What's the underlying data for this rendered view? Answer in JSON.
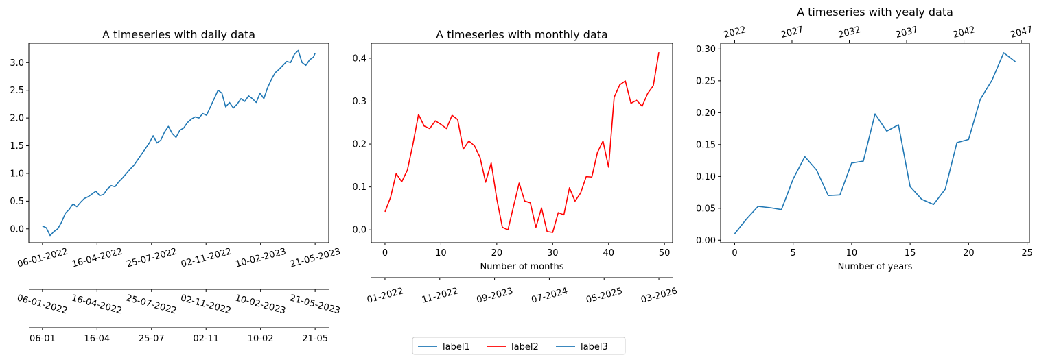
{
  "colors": {
    "blue": "#1f77b4",
    "red": "#ff0000"
  },
  "legend": {
    "placement": "bottom-center",
    "entries": [
      {
        "label": "label1",
        "color": "#1f77b4"
      },
      {
        "label": "label2",
        "color": "#ff0000"
      },
      {
        "label": "label3",
        "color": "#1f77b4"
      }
    ]
  },
  "chart_data": [
    {
      "type": "line",
      "title": "A timeseries with daily data",
      "xlabel": "",
      "ylabel": "",
      "x_range": [
        "2022-01-06",
        "2023-05-21"
      ],
      "ylim": [
        -0.25,
        3.35
      ],
      "yticks": [
        "0.0",
        "0.5",
        "1.0",
        "1.5",
        "2.0",
        "2.5",
        "3.0"
      ],
      "xticks_full": [
        "06-01-2022",
        "16-04-2022",
        "25-07-2022",
        "02-11-2022",
        "10-02-2023",
        "21-05-2023"
      ],
      "xticks_secondary": [
        "06-01-2022",
        "16-04-2022",
        "25-07-2022",
        "02-11-2022",
        "10-02-2023",
        "21-05-2023"
      ],
      "xticks_tertiary": [
        "06-01",
        "16-04",
        "25-07",
        "02-11",
        "10-02",
        "21-05"
      ],
      "series": [
        {
          "color": "#1f77b4",
          "points": [
            [
              "2022-01-06",
              0.05
            ],
            [
              "2022-01-13",
              0.02
            ],
            [
              "2022-01-20",
              -0.12
            ],
            [
              "2022-01-27",
              -0.05
            ],
            [
              "2022-02-03",
              0.0
            ],
            [
              "2022-02-10",
              0.12
            ],
            [
              "2022-02-17",
              0.28
            ],
            [
              "2022-02-24",
              0.35
            ],
            [
              "2022-03-03",
              0.45
            ],
            [
              "2022-03-10",
              0.4
            ],
            [
              "2022-03-17",
              0.48
            ],
            [
              "2022-03-24",
              0.55
            ],
            [
              "2022-03-31",
              0.58
            ],
            [
              "2022-04-07",
              0.63
            ],
            [
              "2022-04-14",
              0.68
            ],
            [
              "2022-04-21",
              0.6
            ],
            [
              "2022-04-28",
              0.62
            ],
            [
              "2022-05-05",
              0.72
            ],
            [
              "2022-05-12",
              0.78
            ],
            [
              "2022-05-19",
              0.76
            ],
            [
              "2022-05-26",
              0.85
            ],
            [
              "2022-06-02",
              0.92
            ],
            [
              "2022-06-09",
              1.0
            ],
            [
              "2022-06-16",
              1.08
            ],
            [
              "2022-06-23",
              1.15
            ],
            [
              "2022-06-30",
              1.25
            ],
            [
              "2022-07-07",
              1.35
            ],
            [
              "2022-07-14",
              1.45
            ],
            [
              "2022-07-21",
              1.55
            ],
            [
              "2022-07-28",
              1.68
            ],
            [
              "2022-08-04",
              1.55
            ],
            [
              "2022-08-11",
              1.6
            ],
            [
              "2022-08-18",
              1.75
            ],
            [
              "2022-08-25",
              1.85
            ],
            [
              "2022-09-01",
              1.72
            ],
            [
              "2022-09-08",
              1.65
            ],
            [
              "2022-09-15",
              1.78
            ],
            [
              "2022-09-22",
              1.82
            ],
            [
              "2022-09-29",
              1.92
            ],
            [
              "2022-10-06",
              1.98
            ],
            [
              "2022-10-13",
              2.02
            ],
            [
              "2022-10-20",
              2.0
            ],
            [
              "2022-10-27",
              2.08
            ],
            [
              "2022-11-03",
              2.05
            ],
            [
              "2022-11-10",
              2.2
            ],
            [
              "2022-11-17",
              2.35
            ],
            [
              "2022-11-24",
              2.5
            ],
            [
              "2022-12-01",
              2.45
            ],
            [
              "2022-12-08",
              2.2
            ],
            [
              "2022-12-15",
              2.28
            ],
            [
              "2022-12-22",
              2.18
            ],
            [
              "2022-12-29",
              2.25
            ],
            [
              "2023-01-05",
              2.35
            ],
            [
              "2023-01-12",
              2.3
            ],
            [
              "2023-01-19",
              2.4
            ],
            [
              "2023-01-26",
              2.35
            ],
            [
              "2023-02-02",
              2.28
            ],
            [
              "2023-02-09",
              2.45
            ],
            [
              "2023-02-16",
              2.35
            ],
            [
              "2023-02-23",
              2.55
            ],
            [
              "2023-03-02",
              2.7
            ],
            [
              "2023-03-09",
              2.82
            ],
            [
              "2023-03-16",
              2.88
            ],
            [
              "2023-03-23",
              2.95
            ],
            [
              "2023-03-30",
              3.02
            ],
            [
              "2023-04-06",
              3.0
            ],
            [
              "2023-04-13",
              3.15
            ],
            [
              "2023-04-20",
              3.22
            ],
            [
              "2023-04-27",
              3.0
            ],
            [
              "2023-05-04",
              2.95
            ],
            [
              "2023-05-11",
              3.05
            ],
            [
              "2023-05-18",
              3.1
            ],
            [
              "2023-05-21",
              3.17
            ]
          ]
        }
      ]
    },
    {
      "type": "line",
      "title": "A timeseries with monthly data",
      "xlabel": "Number of months",
      "ylabel": "",
      "xlim": [
        -2.45,
        51.45
      ],
      "ylim": [
        -0.03,
        0.435
      ],
      "xticks": [
        "0",
        "10",
        "20",
        "30",
        "40",
        "50"
      ],
      "yticks": [
        "0.0",
        "0.1",
        "0.2",
        "0.3",
        "0.4"
      ],
      "secondary_xticks": [
        "01-2022",
        "11-2022",
        "09-2023",
        "07-2024",
        "05-2025",
        "03-2026"
      ],
      "series": [
        {
          "color": "#ff0000",
          "x": [
            0,
            1,
            2,
            3,
            4,
            5,
            6,
            7,
            8,
            9,
            10,
            11,
            12,
            13,
            14,
            15,
            16,
            17,
            18,
            19,
            20,
            21,
            22,
            23,
            24,
            25,
            26,
            27,
            28,
            29,
            30,
            31,
            32,
            33,
            34,
            35,
            36,
            37,
            38,
            39,
            40,
            41,
            42,
            43,
            44,
            45,
            46,
            47,
            48,
            49
          ],
          "values": [
            0.042,
            0.076,
            0.131,
            0.112,
            0.139,
            0.2,
            0.269,
            0.242,
            0.236,
            0.254,
            0.246,
            0.236,
            0.267,
            0.257,
            0.188,
            0.207,
            0.196,
            0.169,
            0.111,
            0.156,
            0.072,
            0.006,
            0.0,
            0.055,
            0.109,
            0.067,
            0.063,
            0.006,
            0.051,
            -0.004,
            -0.006,
            0.04,
            0.035,
            0.098,
            0.067,
            0.086,
            0.124,
            0.123,
            0.18,
            0.207,
            0.146,
            0.309,
            0.338,
            0.347,
            0.295,
            0.302,
            0.288,
            0.318,
            0.336,
            0.414
          ]
        }
      ]
    },
    {
      "type": "line",
      "title": "A timeseries with yealy data",
      "xlabel": "Number of years",
      "ylabel": "",
      "xlim": [
        -1.2,
        25.2
      ],
      "ylim": [
        -0.004,
        0.309
      ],
      "xticks": [
        "0",
        "5",
        "10",
        "15",
        "20",
        "25"
      ],
      "yticks": [
        "0.00",
        "0.05",
        "0.10",
        "0.15",
        "0.20",
        "0.25",
        "0.30"
      ],
      "top_xticks": [
        "2022",
        "2027",
        "2032",
        "2037",
        "2042",
        "2047"
      ],
      "series": [
        {
          "color": "#1f77b4",
          "x": [
            0,
            1,
            2,
            3,
            4,
            5,
            6,
            7,
            8,
            9,
            10,
            11,
            12,
            13,
            14,
            15,
            16,
            17,
            18,
            19,
            20,
            21,
            22,
            23,
            24
          ],
          "values": [
            0.01,
            0.033,
            0.053,
            0.051,
            0.048,
            0.096,
            0.131,
            0.11,
            0.07,
            0.071,
            0.121,
            0.124,
            0.198,
            0.171,
            0.181,
            0.084,
            0.064,
            0.056,
            0.08,
            0.153,
            0.158,
            0.221,
            0.251,
            0.294,
            0.28
          ]
        }
      ]
    }
  ]
}
